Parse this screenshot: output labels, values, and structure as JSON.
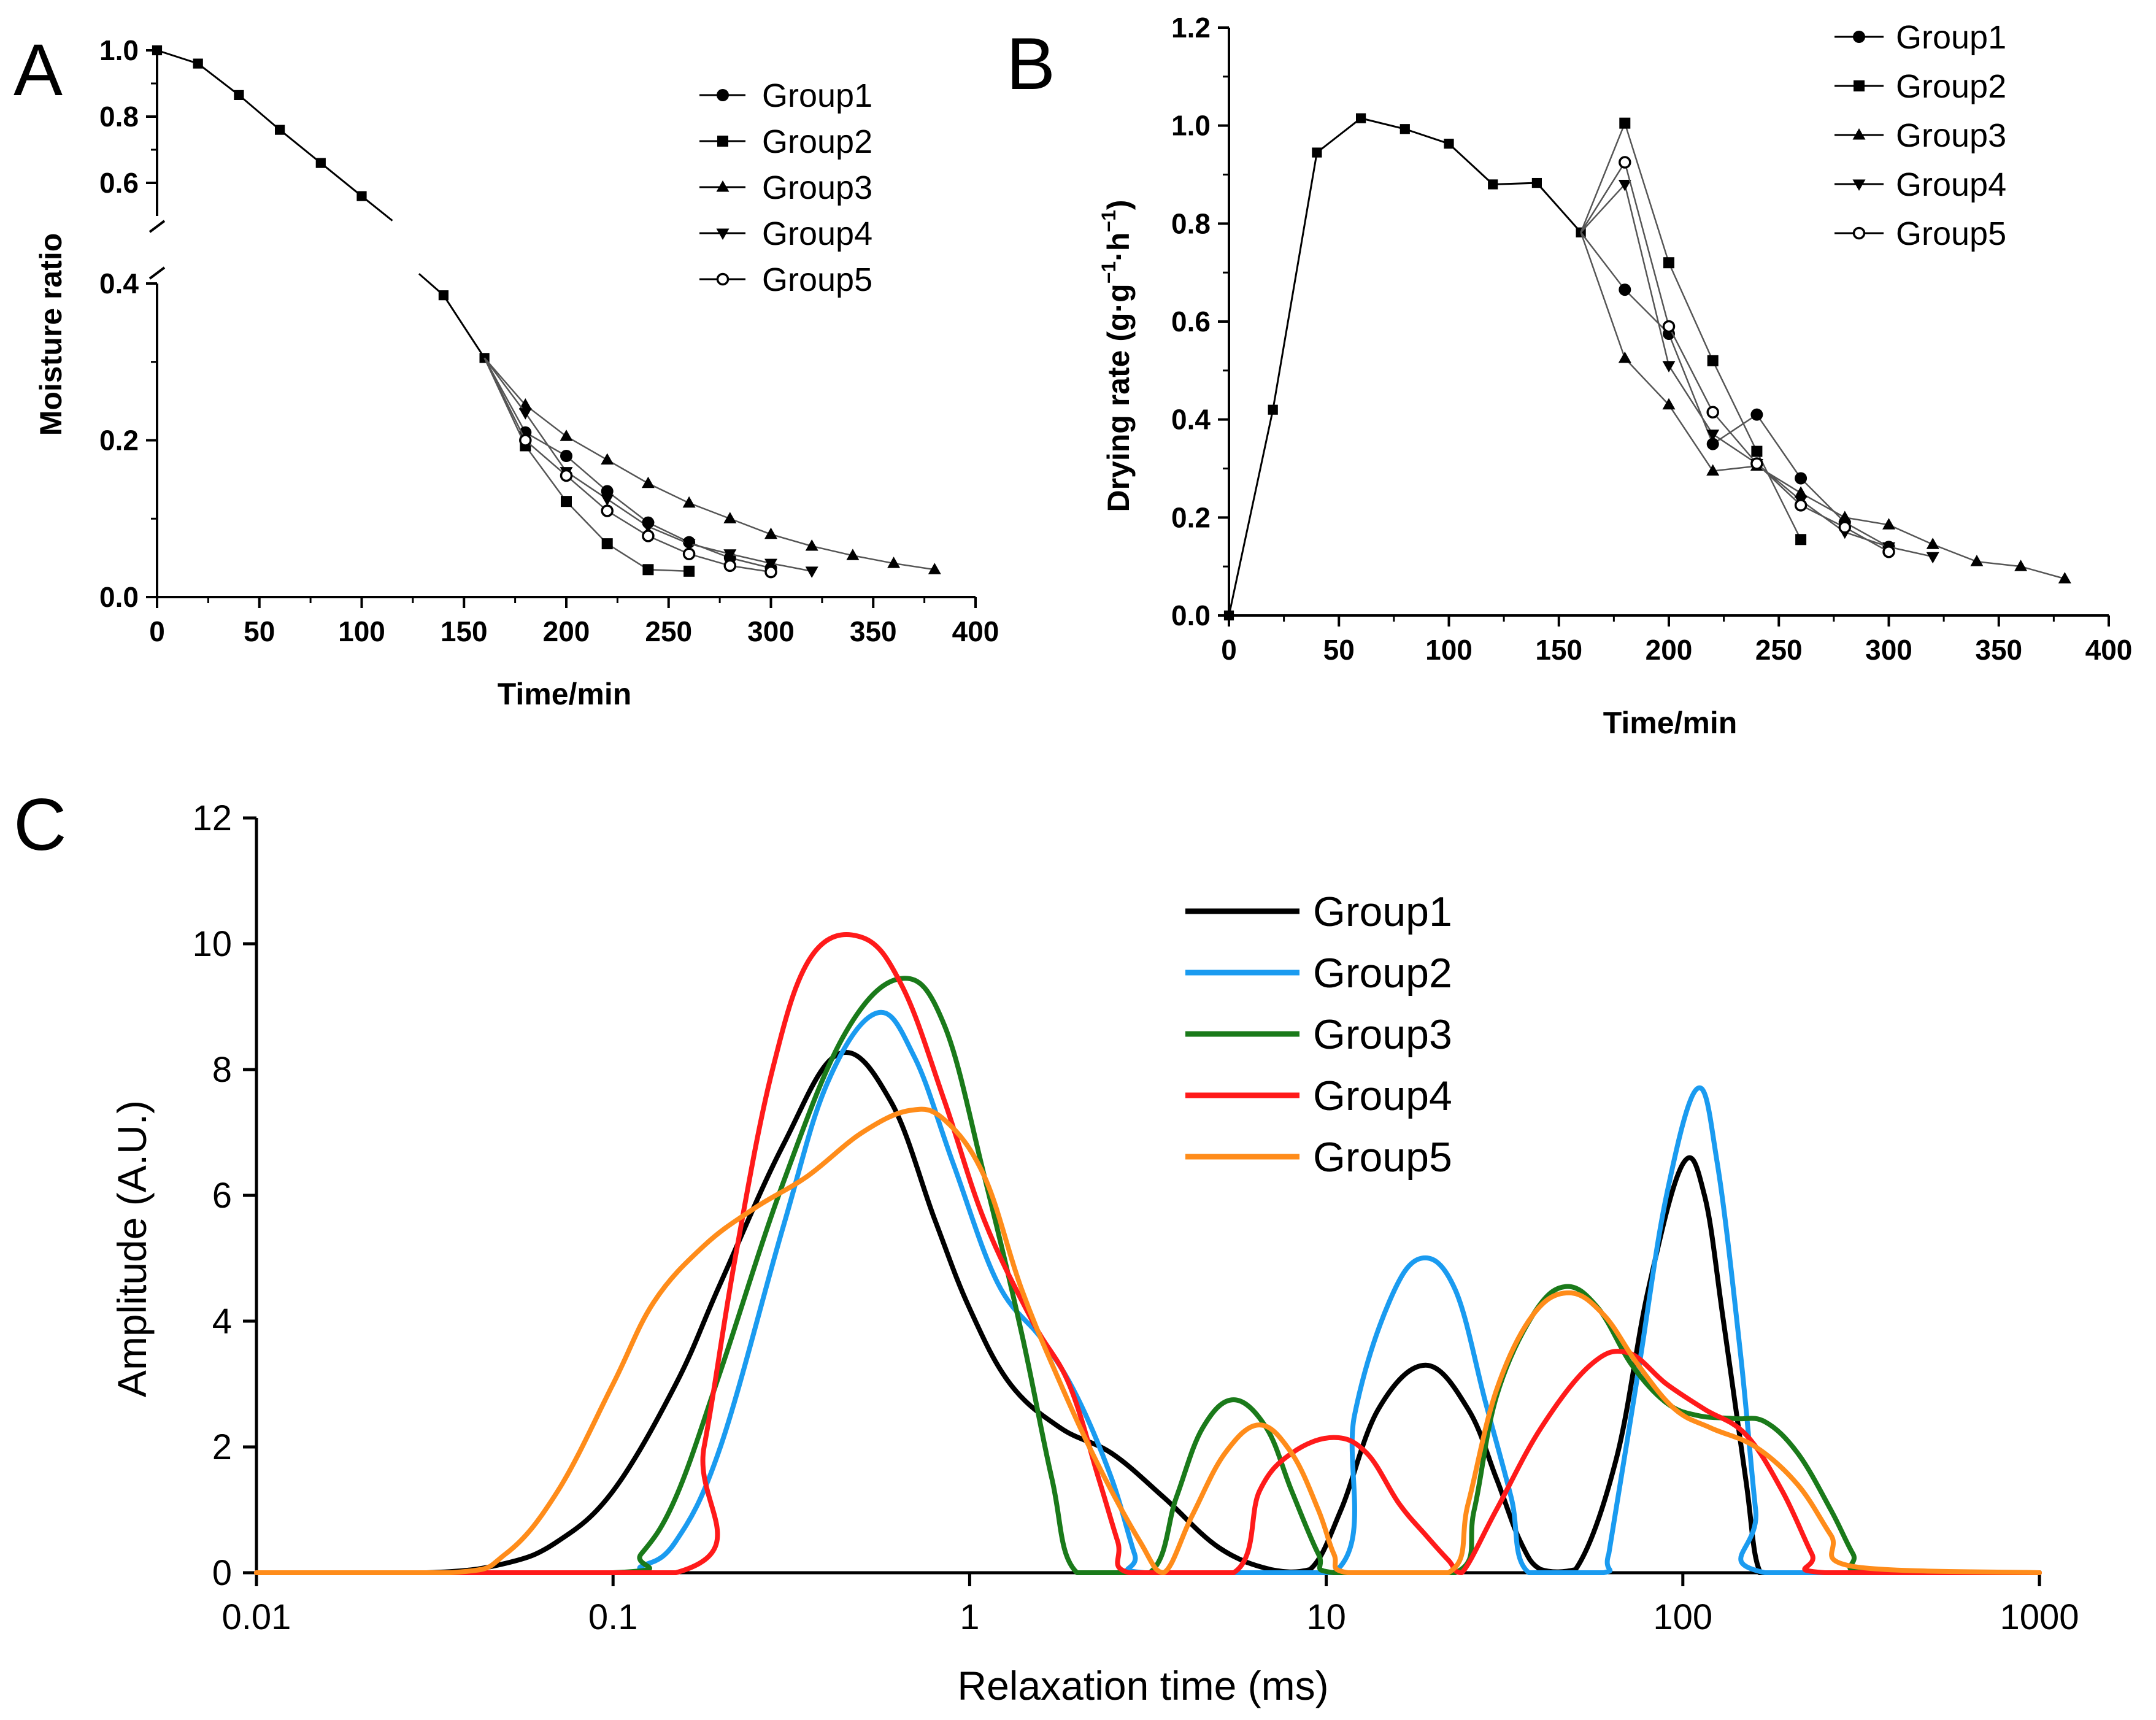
{
  "figure": {
    "panel_labels": {
      "a": "A",
      "b": "B",
      "c": "C"
    }
  },
  "chart_data": [
    {
      "panel": "A",
      "type": "line",
      "title": "",
      "xlabel": "Time/min",
      "ylabel": "Moisture ratio",
      "xlim": [
        0,
        400
      ],
      "ylim": [
        0,
        1.0
      ],
      "axis_break": [
        0.4,
        0.5
      ],
      "x_ticks": [
        "0",
        "50",
        "100",
        "150",
        "200",
        "250",
        "300",
        "350",
        "400"
      ],
      "x_tick_values": [
        0,
        50,
        100,
        150,
        200,
        250,
        300,
        350,
        400
      ],
      "y_ticks": [
        "0.0",
        "0.2",
        "0.4",
        "0.6",
        "0.8",
        "1.0"
      ],
      "y_tick_values": [
        0,
        0.2,
        0.4,
        0.6,
        0.8,
        1.0
      ],
      "y_minor_ticks": [
        0.1,
        0.3,
        0.7,
        0.9
      ],
      "shared_prefix": {
        "x": [
          0,
          20,
          40,
          60,
          80,
          100,
          140,
          160
        ],
        "y": [
          1.0,
          0.96,
          0.865,
          0.76,
          0.66,
          0.56,
          0.385,
          0.305
        ]
      },
      "series": [
        {
          "name": "Group1",
          "marker": "circle",
          "x": [
            160,
            180,
            200,
            220,
            240,
            260,
            280,
            300
          ],
          "y": [
            0.305,
            0.21,
            0.18,
            0.135,
            0.095,
            0.07,
            0.05,
            0.037
          ]
        },
        {
          "name": "Group2",
          "marker": "square",
          "x": [
            160,
            180,
            200,
            220,
            240,
            260
          ],
          "y": [
            0.305,
            0.193,
            0.122,
            0.068,
            0.035,
            0.033
          ]
        },
        {
          "name": "Group3",
          "marker": "triangle-up",
          "x": [
            160,
            180,
            200,
            220,
            240,
            260,
            280,
            300,
            320,
            340,
            360,
            380
          ],
          "y": [
            0.305,
            0.245,
            0.205,
            0.175,
            0.145,
            0.12,
            0.1,
            0.08,
            0.065,
            0.053,
            0.043,
            0.035
          ]
        },
        {
          "name": "Group4",
          "marker": "triangle-down",
          "x": [
            160,
            180,
            200,
            220,
            240,
            260,
            280,
            300,
            320
          ],
          "y": [
            0.305,
            0.235,
            0.16,
            0.125,
            0.09,
            0.068,
            0.055,
            0.043,
            0.033
          ]
        },
        {
          "name": "Group5",
          "marker": "open-circle",
          "x": [
            160,
            180,
            200,
            220,
            240,
            260,
            280,
            300
          ],
          "y": [
            0.305,
            0.2,
            0.155,
            0.11,
            0.078,
            0.055,
            0.04,
            0.032
          ]
        }
      ],
      "legend": [
        "Group1",
        "Group2",
        "Group3",
        "Group4",
        "Group5"
      ],
      "legend_position": "top-right"
    },
    {
      "panel": "B",
      "type": "line",
      "title": "",
      "xlabel": "Time/min",
      "ylabel_parts": [
        "Drying rate (g·g",
        "−1",
        "·h",
        "−1",
        ")"
      ],
      "xlim": [
        0,
        400
      ],
      "ylim": [
        0,
        1.2
      ],
      "x_ticks": [
        "0",
        "50",
        "100",
        "150",
        "200",
        "250",
        "300",
        "350",
        "400"
      ],
      "x_tick_values": [
        0,
        50,
        100,
        150,
        200,
        250,
        300,
        350,
        400
      ],
      "y_ticks": [
        "0.0",
        "0.2",
        "0.4",
        "0.6",
        "0.8",
        "1.0",
        "1.2"
      ],
      "y_tick_values": [
        0,
        0.2,
        0.4,
        0.6,
        0.8,
        1.0,
        1.2
      ],
      "shared_prefix": {
        "x": [
          0,
          20,
          40,
          60,
          80,
          100,
          120,
          140,
          160
        ],
        "y": [
          0.0,
          0.42,
          0.945,
          1.015,
          0.993,
          0.963,
          0.88,
          0.883,
          0.782
        ]
      },
      "series": [
        {
          "name": "Group1",
          "marker": "circle",
          "x": [
            160,
            180,
            200,
            220,
            240,
            260,
            280,
            300
          ],
          "y": [
            0.782,
            0.665,
            0.575,
            0.35,
            0.41,
            0.28,
            0.19,
            0.14
          ]
        },
        {
          "name": "Group2",
          "marker": "square",
          "x": [
            160,
            180,
            200,
            220,
            240,
            260
          ],
          "y": [
            0.782,
            1.005,
            0.72,
            0.52,
            0.335,
            0.155
          ]
        },
        {
          "name": "Group3",
          "marker": "triangle-up",
          "x": [
            160,
            180,
            200,
            220,
            240,
            260,
            280,
            300,
            320,
            340,
            360,
            380
          ],
          "y": [
            0.782,
            0.525,
            0.43,
            0.295,
            0.305,
            0.25,
            0.2,
            0.185,
            0.145,
            0.11,
            0.1,
            0.075
          ]
        },
        {
          "name": "Group4",
          "marker": "triangle-down",
          "x": [
            160,
            180,
            200,
            220,
            240,
            260,
            280,
            300,
            320
          ],
          "y": [
            0.782,
            0.88,
            0.51,
            0.37,
            0.31,
            0.235,
            0.17,
            0.14,
            0.12
          ]
        },
        {
          "name": "Group5",
          "marker": "open-circle",
          "x": [
            160,
            180,
            200,
            220,
            240,
            260,
            280,
            300
          ],
          "y": [
            0.782,
            0.925,
            0.59,
            0.415,
            0.31,
            0.225,
            0.18,
            0.13
          ]
        }
      ],
      "legend": [
        "Group1",
        "Group2",
        "Group3",
        "Group4",
        "Group5"
      ],
      "legend_position": "top-right"
    },
    {
      "panel": "C",
      "type": "line",
      "title": "",
      "xlabel": "Relaxation time (ms)",
      "ylabel": "Amplitude (A.U.)",
      "x_scale": "log",
      "xlim": [
        0.01,
        1000
      ],
      "ylim": [
        0,
        12
      ],
      "x_ticks": [
        "0.01",
        "0.1",
        "1",
        "10",
        "100",
        "1000"
      ],
      "x_tick_values": [
        0.01,
        0.1,
        1,
        10,
        100,
        1000
      ],
      "y_ticks": [
        "0",
        "2",
        "4",
        "6",
        "8",
        "10",
        "12"
      ],
      "y_tick_values": [
        0,
        2,
        4,
        6,
        8,
        10,
        12
      ],
      "series": [
        {
          "name": "Group1",
          "color": "#000000",
          "x": [
            0.01,
            0.03,
            0.05,
            0.07,
            0.1,
            0.15,
            0.2,
            0.3,
            0.43,
            0.6,
            0.8,
            1.0,
            1.3,
            1.8,
            2.5,
            3.5,
            5.0,
            7.0,
            9.0,
            11,
            14,
            19,
            25,
            30,
            35,
            40,
            50,
            65,
            80,
            100,
            115,
            130,
            150,
            165,
            200,
            1000
          ],
          "y": [
            0,
            0,
            0.15,
            0.5,
            1.3,
            3.0,
            4.6,
            6.8,
            8.25,
            7.5,
            5.6,
            4.2,
            3.0,
            2.3,
            1.9,
            1.2,
            0.4,
            0.05,
            0.05,
            1.0,
            2.6,
            3.3,
            2.6,
            1.5,
            0.5,
            0.05,
            0.05,
            1.8,
            4.5,
            6.5,
            6.0,
            4.0,
            1.5,
            0.0,
            0,
            0
          ]
        },
        {
          "name": "Group2",
          "color": "#1a9bf0",
          "x": [
            0.01,
            0.1,
            0.12,
            0.15,
            0.2,
            0.3,
            0.4,
            0.55,
            0.7,
            0.9,
            1.2,
            1.6,
            2.0,
            2.5,
            2.9,
            3.1,
            10.5,
            12,
            15,
            18.5,
            23,
            28,
            33,
            37,
            60,
            62,
            75,
            90,
            110,
            125,
            145,
            160,
            170,
            1000
          ],
          "y": [
            0,
            0,
            0.1,
            0.5,
            2.0,
            5.5,
            7.8,
            8.9,
            8.2,
            6.5,
            4.6,
            3.7,
            2.8,
            1.5,
            0.3,
            0,
            0,
            2.5,
            4.3,
            5.0,
            4.5,
            2.7,
            1.2,
            0,
            0,
            0.3,
            3.2,
            6.0,
            7.7,
            6.5,
            3.5,
            1.0,
            0,
            0
          ]
        },
        {
          "name": "Group3",
          "color": "#1a7a1a",
          "x": [
            0.01,
            0.1,
            0.12,
            0.15,
            0.2,
            0.3,
            0.45,
            0.65,
            0.85,
            1.1,
            1.4,
            1.7,
            2.0,
            3.2,
            3.8,
            4.5,
            5.5,
            6.8,
            8.0,
            9.5,
            10.5,
            23,
            26,
            30,
            38,
            47,
            58,
            72,
            90,
            110,
            140,
            170,
            210,
            260,
            300,
            330,
            1000
          ],
          "y": [
            0,
            0,
            0.3,
            1.2,
            3.2,
            6.2,
            8.6,
            9.45,
            8.7,
            6.3,
            3.8,
            1.5,
            0,
            0,
            1.2,
            2.3,
            2.75,
            2.3,
            1.3,
            0.3,
            0,
            0,
            1.0,
            2.8,
            4.1,
            4.55,
            4.2,
            3.3,
            2.7,
            2.5,
            2.45,
            2.4,
            1.9,
            1.0,
            0.3,
            0,
            0
          ]
        },
        {
          "name": "Group4",
          "color": "#ff1a1a",
          "x": [
            0.01,
            0.15,
            0.18,
            0.22,
            0.28,
            0.36,
            0.5,
            0.65,
            0.85,
            1.1,
            1.5,
            1.9,
            2.3,
            2.6,
            2.8,
            5.5,
            6.5,
            8.0,
            10.5,
            13,
            16,
            19,
            22,
            24,
            30,
            40,
            55,
            70,
            90,
            115,
            150,
            190,
            230,
            250,
            1000
          ],
          "y": [
            0,
            0,
            2.0,
            5.0,
            8.0,
            9.8,
            10.1,
            9.3,
            7.5,
            5.6,
            4.0,
            3.0,
            1.5,
            0.5,
            0,
            0,
            1.3,
            1.9,
            2.15,
            1.9,
            1.1,
            0.6,
            0.2,
            0,
            1.0,
            2.3,
            3.3,
            3.5,
            3.0,
            2.6,
            2.2,
            1.3,
            0.3,
            0,
            0
          ]
        },
        {
          "name": "Group5",
          "color": "#ff8c1a",
          "x": [
            0.01,
            0.035,
            0.05,
            0.07,
            0.1,
            0.13,
            0.18,
            0.25,
            0.35,
            0.5,
            0.68,
            0.85,
            1.1,
            1.4,
            1.8,
            2.3,
            3.0,
            3.5,
            4.2,
            5.2,
            6.5,
            8.0,
            9.5,
            10.5,
            11.5,
            22,
            25,
            30,
            38,
            48,
            60,
            75,
            95,
            120,
            160,
            210,
            260,
            300,
            1000
          ],
          "y": [
            0,
            0,
            0.3,
            1.3,
            3.0,
            4.3,
            5.2,
            5.8,
            6.3,
            7.0,
            7.35,
            7.2,
            6.3,
            4.5,
            3.0,
            1.7,
            0.5,
            0.0,
            0.9,
            1.9,
            2.35,
            1.9,
            1.0,
            0.3,
            0,
            0,
            1.1,
            2.9,
            4.1,
            4.45,
            4.1,
            3.3,
            2.6,
            2.3,
            2.0,
            1.4,
            0.6,
            0.1,
            0
          ]
        }
      ],
      "legend": [
        "Group1",
        "Group2",
        "Group3",
        "Group4",
        "Group5"
      ],
      "legend_position": "top-center"
    }
  ]
}
